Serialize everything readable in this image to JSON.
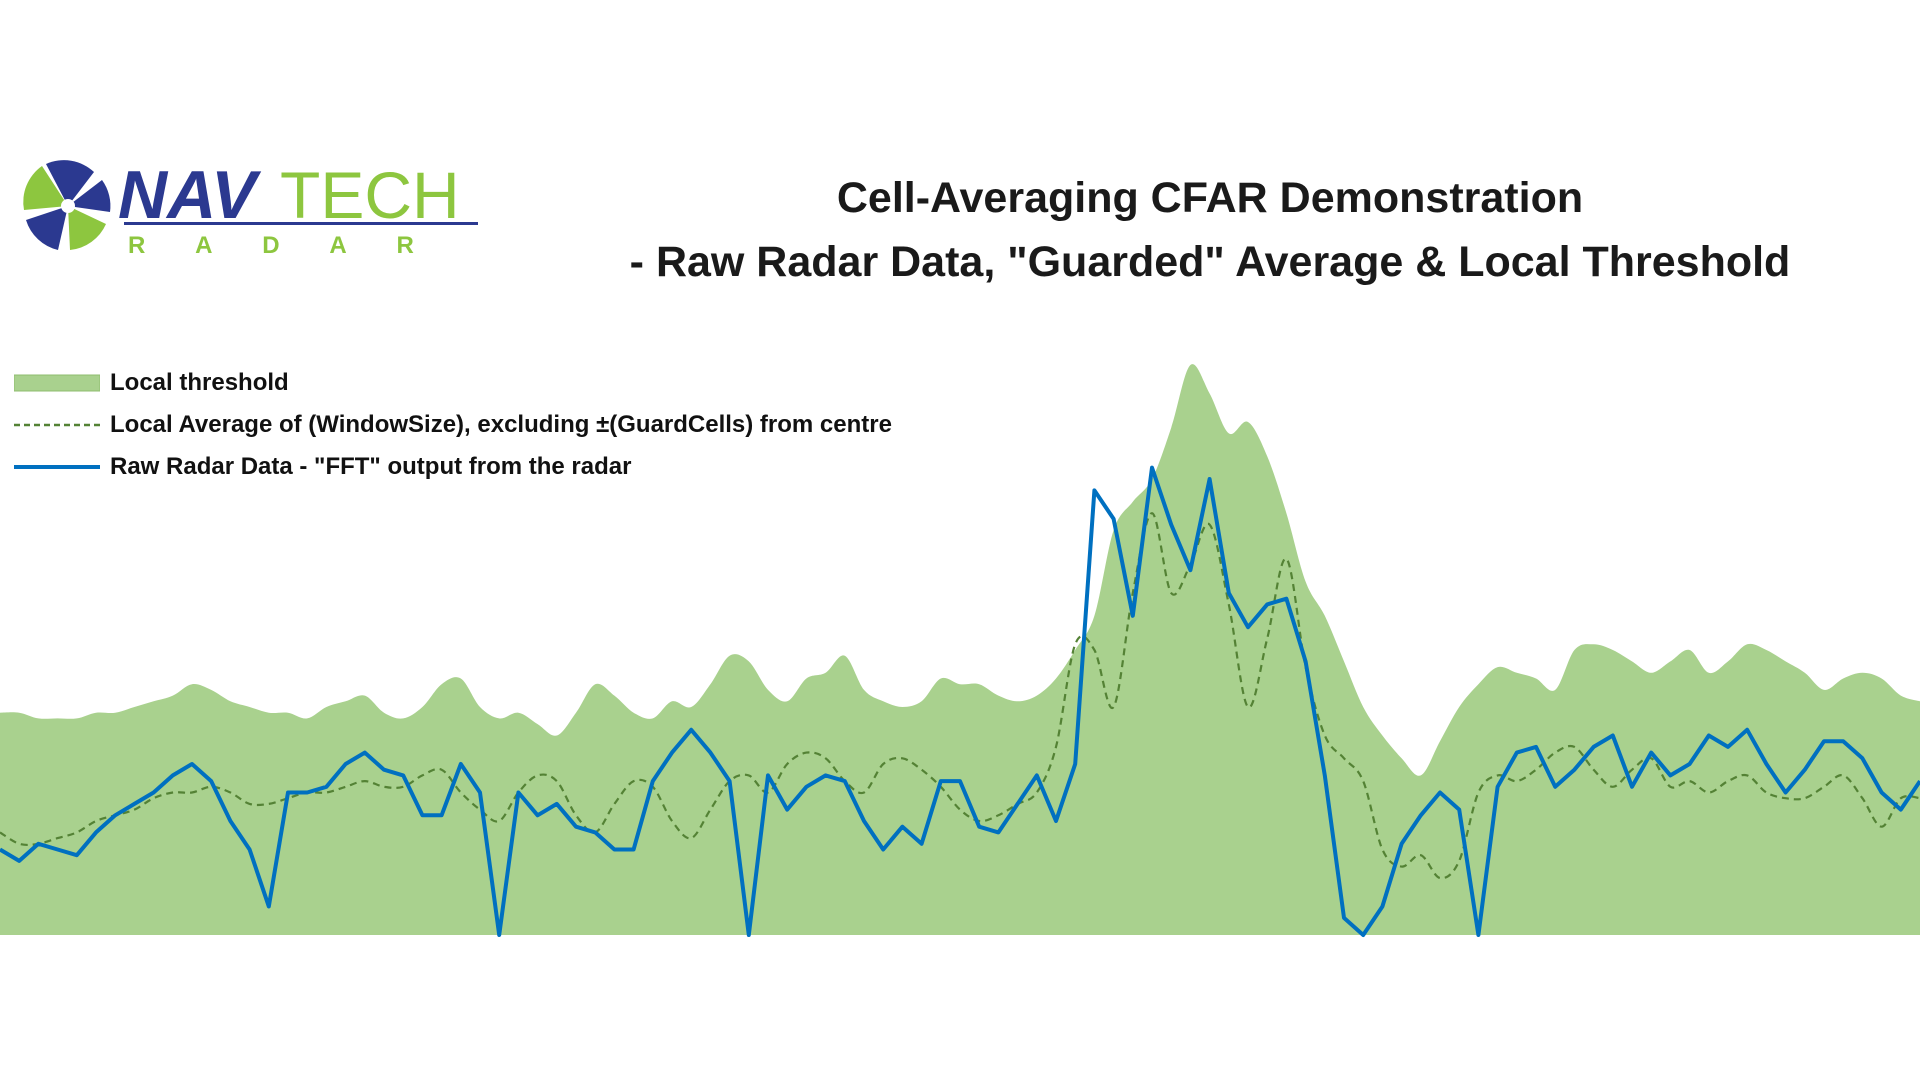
{
  "logo": {
    "brand_part1": "NAV",
    "brand_part2": "TECH",
    "brand_sub": "R A D A R",
    "colors": {
      "navy": "#2b3990",
      "green": "#8dc63f"
    }
  },
  "title": {
    "line1": "Cell-Averaging CFAR Demonstration",
    "line2": "- Raw Radar Data, \"Guarded\" Average & Local Threshold"
  },
  "chart_data": {
    "type": "line",
    "title": "Cell-Averaging CFAR Demonstration - Raw Radar Data, \"Guarded\" Average & Local Threshold",
    "xlabel": "",
    "ylabel": "",
    "x_range": [
      0,
      100
    ],
    "ylim": [
      0,
      100
    ],
    "grid": false,
    "axes_visible": false,
    "legend_position": "top-left",
    "colors": {
      "threshold_fill": "#a9d18e",
      "average": "#548235",
      "raw": "#0070c0"
    },
    "series": [
      {
        "name": "Local threshold",
        "style": "filled-area",
        "x": [
          0,
          1,
          2,
          3,
          4,
          5,
          6,
          7,
          8,
          9,
          10,
          11,
          12,
          13,
          14,
          15,
          16,
          17,
          18,
          19,
          20,
          21,
          22,
          23,
          24,
          25,
          26,
          27,
          28,
          29,
          30,
          31,
          32,
          33,
          34,
          35,
          36,
          37,
          38,
          39,
          40,
          41,
          42,
          43,
          44,
          45,
          46,
          47,
          48,
          49,
          50,
          51,
          52,
          53,
          54,
          55,
          56,
          57,
          58,
          59,
          60,
          61,
          62,
          63,
          64,
          65,
          66,
          67,
          68,
          69,
          70,
          71,
          72,
          73,
          74,
          75,
          76,
          77,
          78,
          79,
          80,
          81,
          82,
          83,
          84,
          85,
          86,
          87,
          88,
          89,
          90,
          91,
          92,
          93,
          94,
          95,
          96,
          97,
          98,
          99,
          100
        ],
        "values": [
          39,
          39,
          38,
          38,
          38,
          39,
          39,
          40,
          41,
          42,
          44,
          43,
          41,
          40,
          39,
          39,
          38,
          40,
          41,
          42,
          39,
          38,
          40,
          44,
          45,
          40,
          38,
          39,
          37,
          35,
          39,
          44,
          42,
          39,
          38,
          41,
          40,
          44,
          49,
          48,
          43,
          41,
          45,
          46,
          49,
          43,
          41,
          40,
          41,
          45,
          44,
          44,
          42,
          41,
          42,
          45,
          50,
          56,
          71,
          76,
          80,
          89,
          100,
          95,
          88,
          90,
          84,
          74,
          62,
          56,
          48,
          40,
          35,
          31,
          28,
          34,
          40,
          44,
          47,
          46,
          45,
          43,
          50,
          51,
          50,
          48,
          46,
          48,
          50,
          46,
          48,
          51,
          50,
          48,
          46,
          43,
          45,
          46,
          45,
          42,
          41
        ]
      },
      {
        "name": "Local Average of (WindowSize), excluding ±(GuardCells) from centre",
        "style": "dashed-line",
        "x": [
          0,
          1,
          2,
          3,
          4,
          5,
          6,
          7,
          8,
          9,
          10,
          11,
          12,
          13,
          14,
          15,
          16,
          17,
          18,
          19,
          20,
          21,
          22,
          23,
          24,
          25,
          26,
          27,
          28,
          29,
          30,
          31,
          32,
          33,
          34,
          35,
          36,
          37,
          38,
          39,
          40,
          41,
          42,
          43,
          44,
          45,
          46,
          47,
          48,
          49,
          50,
          51,
          52,
          53,
          54,
          55,
          56,
          57,
          58,
          59,
          60,
          61,
          62,
          63,
          64,
          65,
          66,
          67,
          68,
          69,
          70,
          71,
          72,
          73,
          74,
          75,
          76,
          77,
          78,
          79,
          80,
          81,
          82,
          83,
          84,
          85,
          86,
          87,
          88,
          89,
          90,
          91,
          92,
          93,
          94,
          95,
          96,
          97,
          98,
          99,
          100
        ],
        "values": [
          18,
          16,
          16,
          17,
          18,
          20,
          21,
          22,
          24,
          25,
          25,
          26,
          25,
          23,
          23,
          24,
          25,
          25,
          26,
          27,
          26,
          26,
          28,
          29,
          25,
          22,
          20,
          25,
          28,
          27,
          21,
          18,
          23,
          27,
          26,
          20,
          17,
          22,
          27,
          28,
          25,
          30,
          32,
          31,
          27,
          25,
          30,
          31,
          29,
          26,
          22,
          20,
          21,
          23,
          25,
          33,
          51,
          50,
          40,
          60,
          74,
          60,
          65,
          72,
          58,
          40,
          52,
          66,
          47,
          35,
          31,
          27,
          15,
          12,
          14,
          10,
          13,
          25,
          28,
          27,
          29,
          32,
          33,
          29,
          26,
          29,
          31,
          26,
          27,
          25,
          27,
          28,
          25,
          24,
          24,
          26,
          28,
          24,
          19,
          24,
          24
        ]
      },
      {
        "name": "Raw Radar Data - \"FFT\" output from the radar",
        "style": "solid-line",
        "x": [
          0,
          1,
          2,
          3,
          4,
          5,
          6,
          7,
          8,
          9,
          10,
          11,
          12,
          13,
          14,
          15,
          16,
          17,
          18,
          19,
          20,
          21,
          22,
          23,
          24,
          25,
          26,
          27,
          28,
          29,
          30,
          31,
          32,
          33,
          34,
          35,
          36,
          37,
          38,
          39,
          40,
          41,
          42,
          43,
          44,
          45,
          46,
          47,
          48,
          49,
          50,
          51,
          52,
          53,
          54,
          55,
          56,
          57,
          58,
          59,
          60,
          61,
          62,
          63,
          64,
          65,
          66,
          67,
          68,
          69,
          70,
          71,
          72,
          73,
          74,
          75,
          76,
          77,
          78,
          79,
          80,
          81,
          82,
          83,
          84,
          85,
          86,
          87,
          88,
          89,
          90,
          91,
          92,
          93,
          94,
          95,
          96,
          97,
          98,
          99,
          100
        ],
        "values": [
          15,
          13,
          16,
          15,
          14,
          18,
          21,
          23,
          25,
          28,
          30,
          27,
          20,
          15,
          5,
          25,
          25,
          26,
          30,
          32,
          29,
          28,
          21,
          21,
          30,
          25,
          0,
          25,
          21,
          23,
          19,
          18,
          15,
          15,
          27,
          32,
          36,
          32,
          27,
          0,
          28,
          22,
          26,
          28,
          27,
          20,
          15,
          19,
          16,
          27,
          27,
          19,
          18,
          23,
          28,
          20,
          30,
          78,
          73,
          56,
          82,
          72,
          64,
          80,
          60,
          54,
          58,
          59,
          48,
          28,
          3,
          0,
          5,
          16,
          21,
          25,
          22,
          0,
          26,
          32,
          33,
          26,
          29,
          33,
          35,
          26,
          32,
          28,
          30,
          35,
          33,
          36,
          30,
          25,
          29,
          34,
          34,
          31,
          25,
          22,
          27
        ]
      }
    ]
  }
}
